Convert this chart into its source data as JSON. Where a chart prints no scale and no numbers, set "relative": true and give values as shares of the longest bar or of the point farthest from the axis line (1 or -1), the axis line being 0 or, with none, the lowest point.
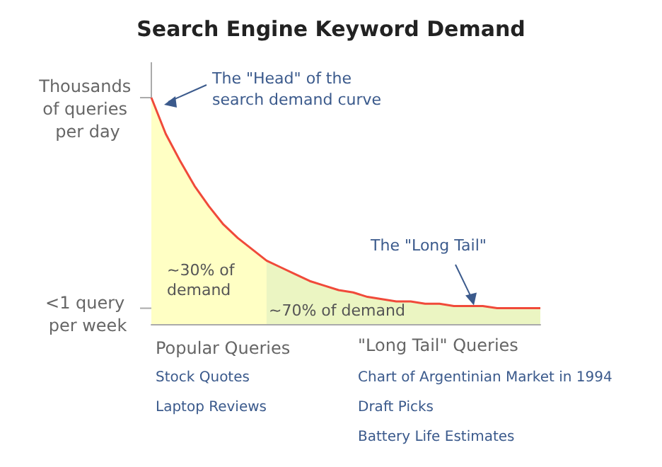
{
  "chart_data": {
    "type": "area",
    "title": "Search Engine Keyword Demand",
    "relative": true,
    "categories": [
      null,
      null,
      null,
      null,
      null,
      null,
      null,
      null,
      null,
      null,
      null,
      null,
      null,
      null,
      null,
      null,
      null,
      null,
      null,
      null,
      null,
      null,
      null,
      null,
      null,
      null,
      null,
      null
    ],
    "series": [
      {
        "type": "line",
        "color": "#f04a3a",
        "values": [
          1,
          0.84,
          0.72,
          0.61,
          0.52,
          0.44,
          0.38,
          0.33,
          0.28,
          0.25,
          0.22,
          0.19,
          0.17,
          0.15,
          0.14,
          0.12,
          0.11,
          0.1,
          0.1,
          0.09,
          0.09,
          0.08,
          0.08,
          0.08,
          0.07,
          0.07,
          0.07,
          0.07
        ]
      },
      {
        "color": "#ffffc4",
        "values": [
          1,
          0.84,
          0.72,
          0.61,
          0.52,
          0.44,
          0.38,
          0.33,
          0.28,
          null,
          null,
          null,
          null,
          null,
          null,
          null,
          null,
          null,
          null,
          null,
          null,
          null,
          null,
          null,
          null,
          null,
          null,
          null
        ]
      },
      {
        "color": "#ebf5c2",
        "values": [
          null,
          null,
          null,
          null,
          null,
          null,
          null,
          null,
          0.28,
          0.25,
          0.22,
          0.19,
          0.17,
          0.15,
          0.14,
          0.12,
          0.11,
          0.1,
          0.1,
          0.09,
          0.09,
          0.08,
          0.08,
          0.08,
          0.07,
          0.07,
          0.07,
          0.07
        ]
      }
    ],
    "annotations": [
      "Thousands of queries per day",
      "<1 query per week",
      "The \"Head\" of the search demand curve",
      "The \"Long Tail\"",
      "~30% of demand",
      "~70% of demand",
      "Popular Queries",
      "Stock Quotes",
      "Laptop Reviews",
      "\"Long Tail\" Queries",
      "Chart of Argentinian Market in 1994",
      "Draft Picks",
      "Battery Life Estimates"
    ],
    "grid": false
  }
}
